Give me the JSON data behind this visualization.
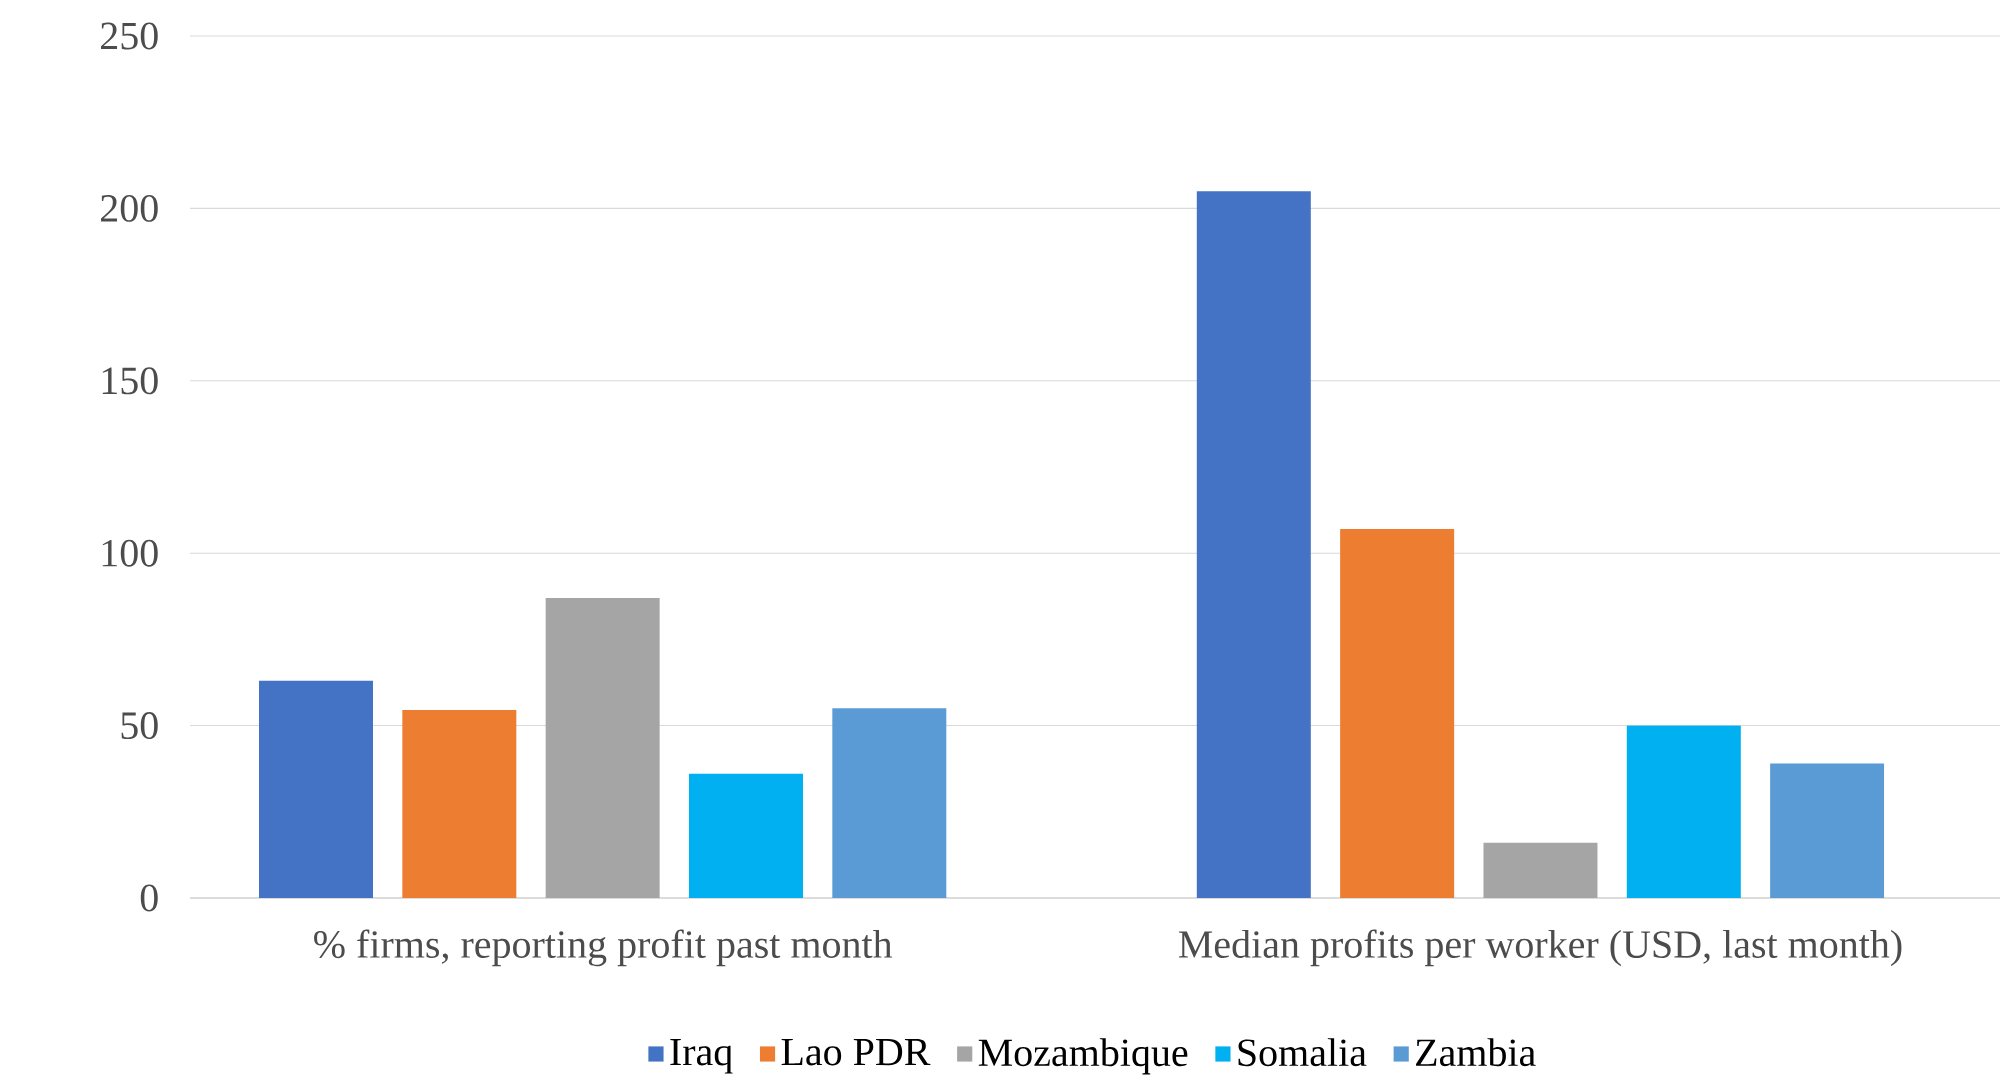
{
  "chart_data": {
    "type": "bar",
    "categories": [
      "% firms, reporting profit past month",
      "Median profits per worker (USD, last month)"
    ],
    "series": [
      {
        "name": "Iraq",
        "color": "#4472c4",
        "values": [
          63,
          205
        ]
      },
      {
        "name": "Lao PDR",
        "color": "#ed7d31",
        "values": [
          54.5,
          107
        ]
      },
      {
        "name": "Mozambique",
        "color": "#a5a5a5",
        "values": [
          87,
          16
        ]
      },
      {
        "name": "Somalia",
        "color": "#00b0f0",
        "values": [
          36,
          50
        ]
      },
      {
        "name": "Zambia",
        "color": "#5b9bd5",
        "values": [
          55,
          39
        ]
      }
    ],
    "ylim": [
      0,
      250
    ],
    "yticks": [
      0,
      50,
      100,
      150,
      200,
      250
    ],
    "grid": "y",
    "legend": "bottom"
  }
}
